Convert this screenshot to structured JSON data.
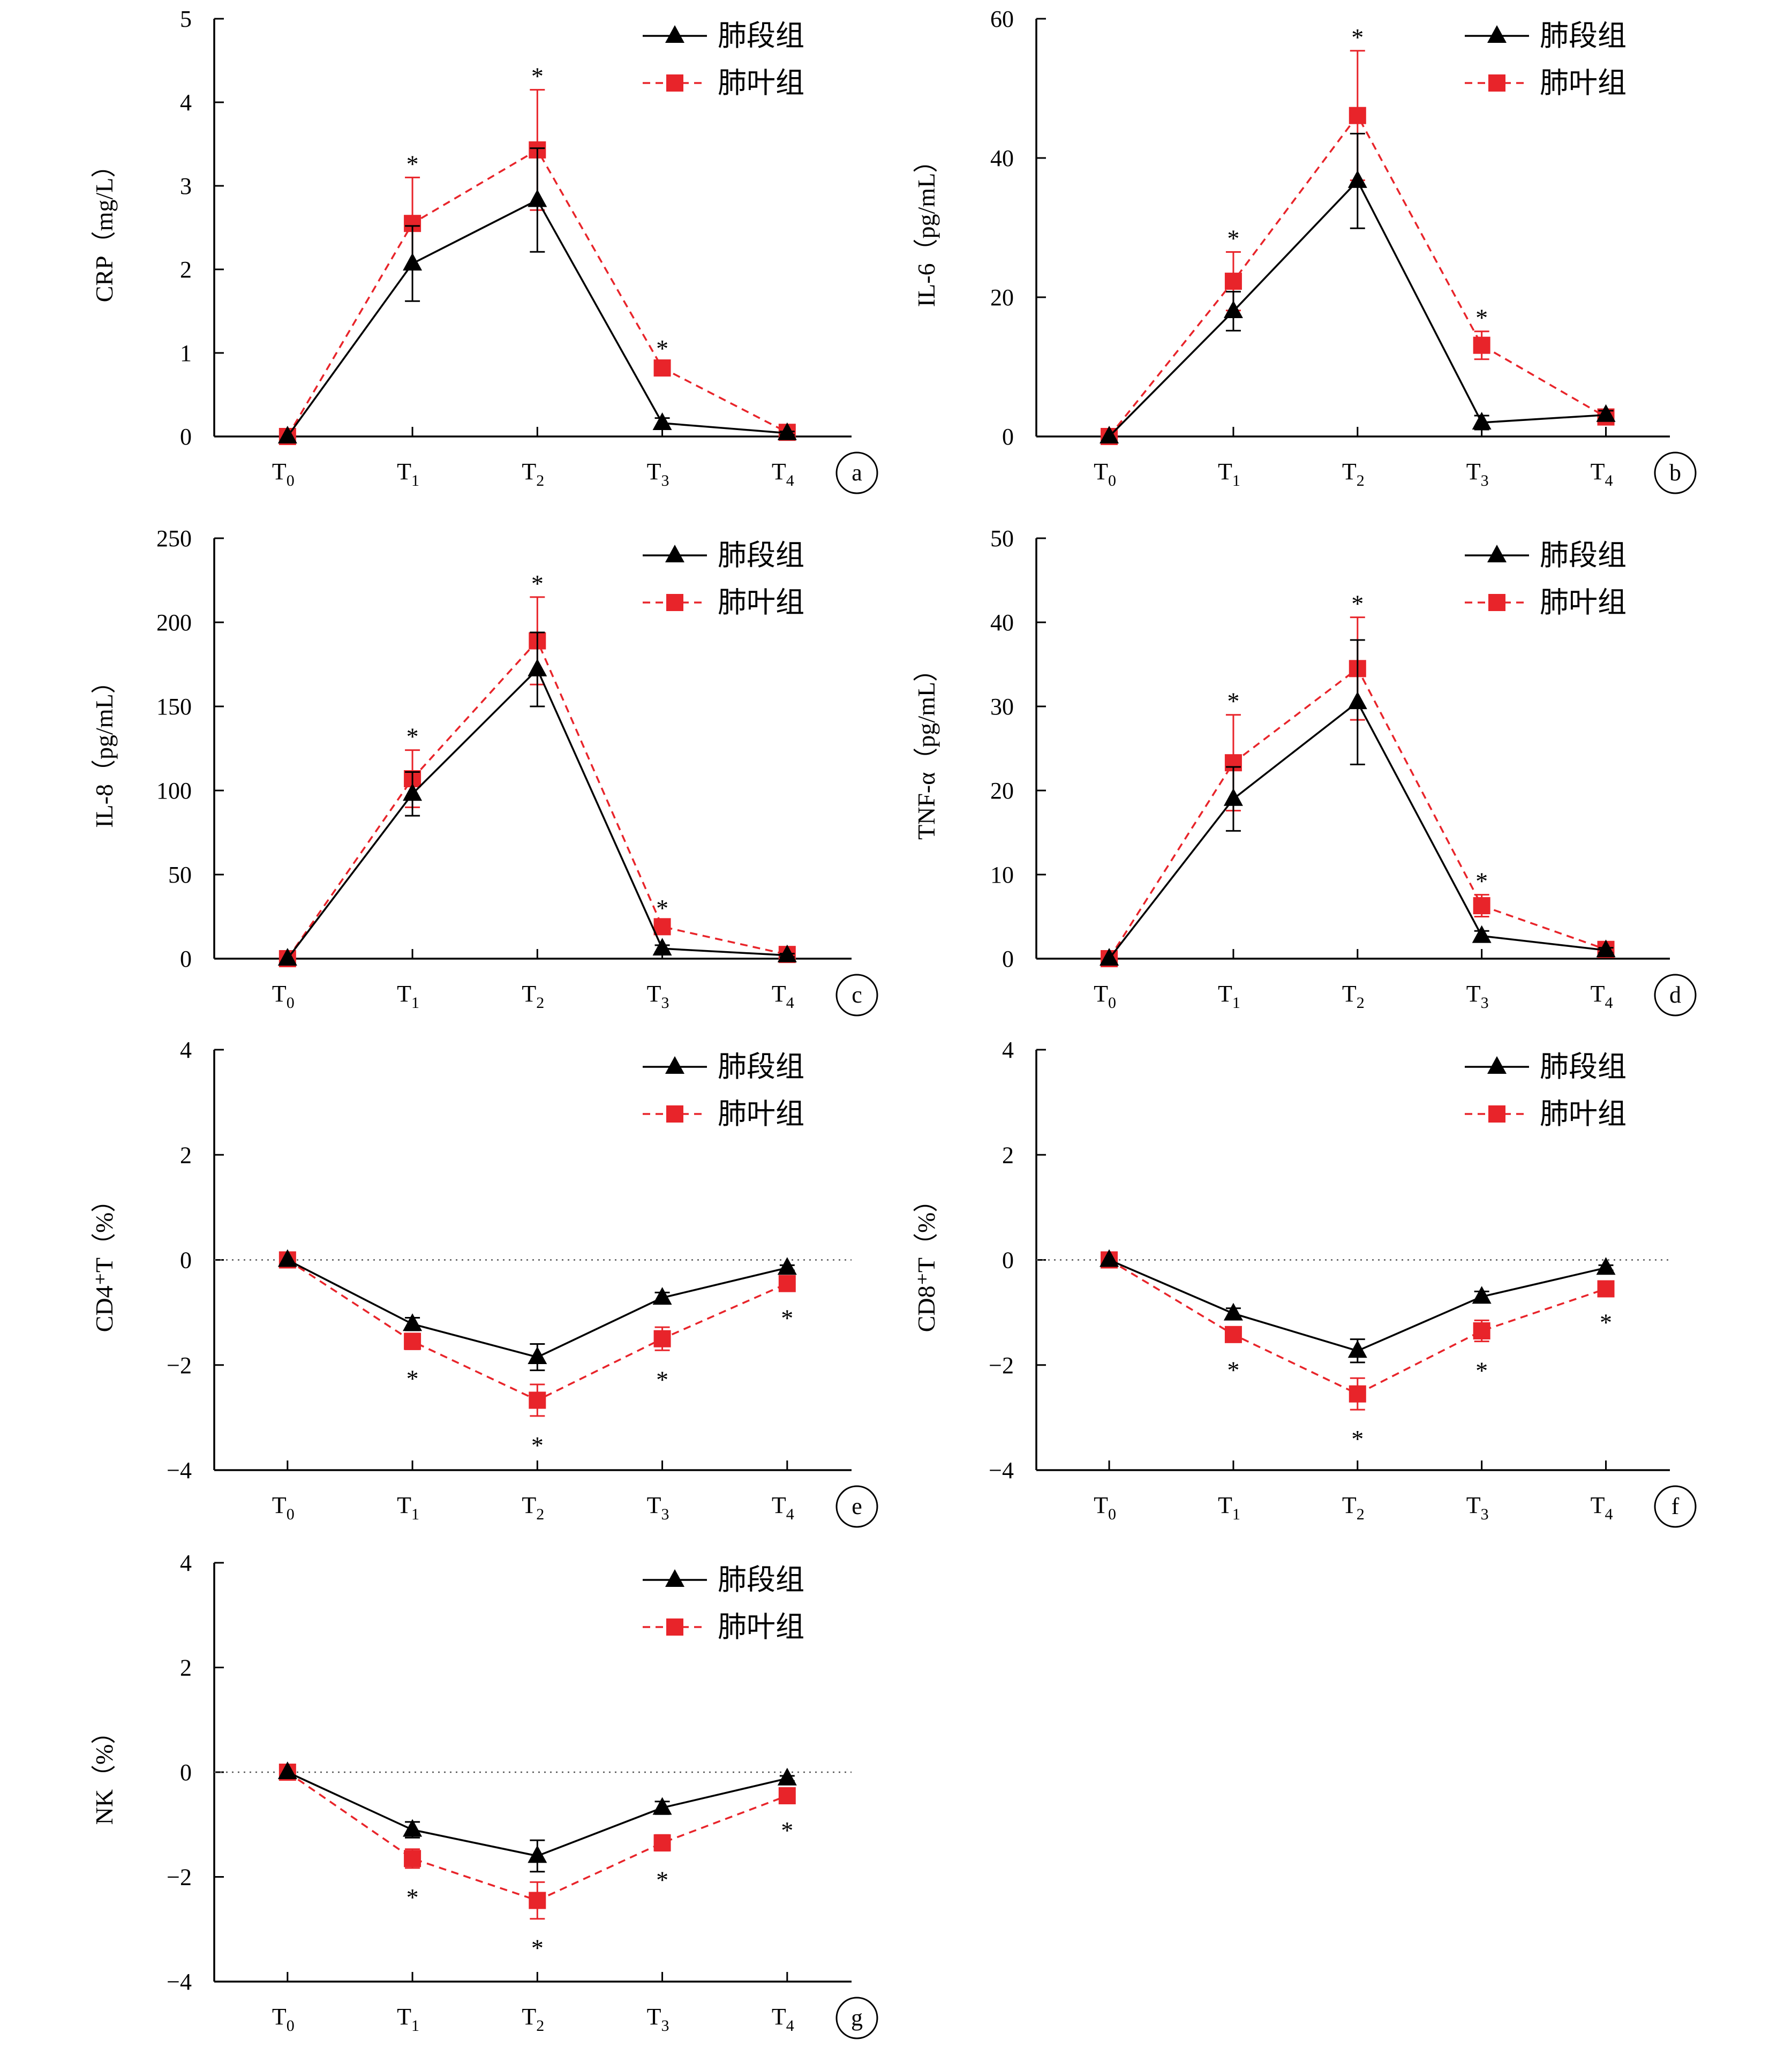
{
  "legend": [
    "肺段组",
    "肺叶组"
  ],
  "colors": {
    "segment": "#000000",
    "lobe": "#e8242a"
  },
  "chart_data": [
    {
      "panel": "a",
      "type": "line",
      "ylabel": "CRP（mg/L）",
      "categories": [
        "T0",
        "T1",
        "T2",
        "T3",
        "T4"
      ],
      "ylim": [
        0,
        5
      ],
      "yticks": [
        0,
        1,
        2,
        3,
        4,
        5
      ],
      "zero_line": false,
      "series": [
        {
          "name": "肺段组",
          "values": [
            0,
            2.07,
            2.83,
            0.16,
            0.04
          ],
          "err": [
            0,
            0.45,
            0.62,
            0.06,
            0.02
          ]
        },
        {
          "name": "肺叶组",
          "values": [
            0,
            2.55,
            3.43,
            0.82,
            0.05
          ],
          "err": [
            0,
            0.55,
            0.72,
            0.07,
            0.02
          ]
        }
      ],
      "stars": [
        1,
        2,
        3
      ],
      "star_pos": "above"
    },
    {
      "panel": "b",
      "type": "line",
      "ylabel": "IL-6（pg/mL）",
      "categories": [
        "T0",
        "T1",
        "T2",
        "T3",
        "T4"
      ],
      "ylim": [
        0,
        60
      ],
      "yticks": [
        0,
        20,
        40,
        60
      ],
      "zero_line": false,
      "series": [
        {
          "name": "肺段组",
          "values": [
            0,
            18,
            36.7,
            2,
            3.1
          ],
          "err": [
            0,
            2.8,
            6.8,
            1,
            0.6
          ]
        },
        {
          "name": "肺叶组",
          "values": [
            0,
            22.3,
            46.1,
            13.1,
            2.8
          ],
          "err": [
            0,
            4.2,
            9.3,
            2,
            0.6
          ]
        }
      ],
      "stars": [
        1,
        2,
        3
      ],
      "star_pos": "above"
    },
    {
      "panel": "c",
      "type": "line",
      "ylabel": "IL-8（pg/mL）",
      "categories": [
        "T0",
        "T1",
        "T2",
        "T3",
        "T4"
      ],
      "ylim": [
        0,
        250
      ],
      "yticks": [
        0,
        50,
        100,
        150,
        200,
        250
      ],
      "zero_line": false,
      "series": [
        {
          "name": "肺段组",
          "values": [
            0,
            98,
            172,
            6,
            2
          ],
          "err": [
            0,
            13,
            22,
            2,
            1
          ]
        },
        {
          "name": "肺叶组",
          "values": [
            0,
            107,
            189,
            19,
            2.5
          ],
          "err": [
            0,
            17,
            26,
            3,
            1
          ]
        }
      ],
      "stars": [
        1,
        2,
        3
      ],
      "star_pos": "above"
    },
    {
      "panel": "d",
      "type": "line",
      "ylabel": "TNF-α（pg/mL）",
      "categories": [
        "T0",
        "T1",
        "T2",
        "T3",
        "T4"
      ],
      "ylim": [
        0,
        50
      ],
      "yticks": [
        0,
        10,
        20,
        30,
        40,
        50
      ],
      "zero_line": false,
      "series": [
        {
          "name": "肺段组",
          "values": [
            0,
            19,
            30.5,
            2.7,
            1
          ],
          "err": [
            0,
            3.8,
            7.4,
            0.6,
            0.3
          ]
        },
        {
          "name": "肺叶组",
          "values": [
            0,
            23.3,
            34.5,
            6.3,
            1.1
          ],
          "err": [
            0,
            5.7,
            6.1,
            1.3,
            0.3
          ]
        }
      ],
      "stars": [
        1,
        2,
        3
      ],
      "star_pos": "above"
    },
    {
      "panel": "e",
      "type": "line",
      "ylabel": "CD4⁺T（%）",
      "categories": [
        "T0",
        "T1",
        "T2",
        "T3",
        "T4"
      ],
      "ylim": [
        -4,
        4
      ],
      "yticks": [
        -4,
        -2,
        0,
        2,
        4
      ],
      "zero_line": true,
      "series": [
        {
          "name": "肺段组",
          "values": [
            0,
            -1.22,
            -1.85,
            -0.72,
            -0.15
          ],
          "err": [
            0,
            0.12,
            0.25,
            0.1,
            0.05
          ]
        },
        {
          "name": "肺叶组",
          "values": [
            0,
            -1.55,
            -2.67,
            -1.5,
            -0.45
          ],
          "err": [
            0,
            0.15,
            0.3,
            0.22,
            0.1
          ]
        }
      ],
      "stars": [
        1,
        2,
        3,
        4
      ],
      "star_pos": "below"
    },
    {
      "panel": "f",
      "type": "line",
      "ylabel": "CD8⁺T（%）",
      "categories": [
        "T0",
        "T1",
        "T2",
        "T3",
        "T4"
      ],
      "ylim": [
        -4,
        4
      ],
      "yticks": [
        -4,
        -2,
        0,
        2,
        4
      ],
      "zero_line": true,
      "series": [
        {
          "name": "肺段组",
          "values": [
            0,
            -1.02,
            -1.73,
            -0.7,
            -0.15
          ],
          "err": [
            0,
            0.1,
            0.22,
            0.1,
            0.05
          ]
        },
        {
          "name": "肺叶组",
          "values": [
            0,
            -1.42,
            -2.55,
            -1.35,
            -0.55
          ],
          "err": [
            0,
            0.12,
            0.3,
            0.2,
            0.08
          ]
        }
      ],
      "stars": [
        1,
        2,
        3,
        4
      ],
      "star_pos": "below"
    },
    {
      "panel": "g",
      "type": "line",
      "ylabel": "NK（%）",
      "categories": [
        "T0",
        "T1",
        "T2",
        "T3",
        "T4"
      ],
      "ylim": [
        -4,
        4
      ],
      "yticks": [
        -4,
        -2,
        0,
        2,
        4
      ],
      "zero_line": true,
      "series": [
        {
          "name": "肺段组",
          "values": [
            0,
            -1.1,
            -1.6,
            -0.68,
            -0.12
          ],
          "err": [
            0,
            0.15,
            0.3,
            0.12,
            0.05
          ]
        },
        {
          "name": "肺叶组",
          "values": [
            0,
            -1.65,
            -2.45,
            -1.35,
            -0.45
          ],
          "err": [
            0,
            0.18,
            0.35,
            0.15,
            0.1
          ]
        }
      ],
      "stars": [
        1,
        2,
        3,
        4
      ],
      "star_pos": "below"
    }
  ]
}
